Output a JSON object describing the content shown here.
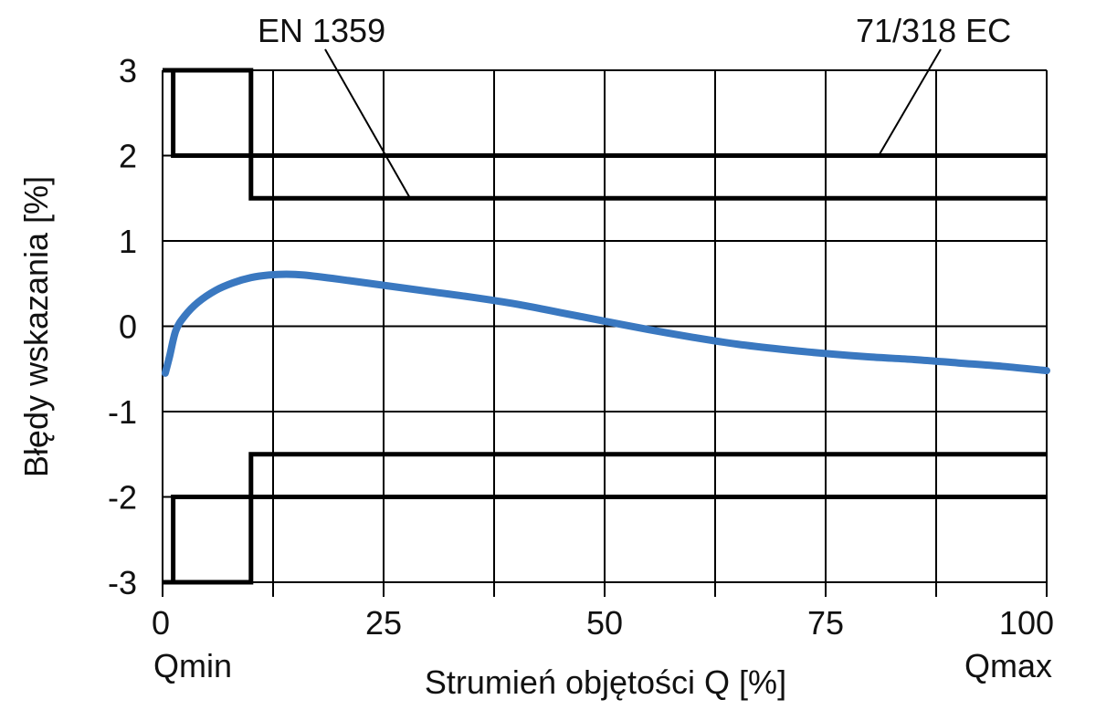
{
  "chart_data": {
    "type": "line",
    "title": "",
    "xlabel": "Strumień objętości Q  [%]",
    "ylabel": "Błędy wskazania  [%]",
    "xlim": [
      0,
      100
    ],
    "ylim": [
      -3,
      3
    ],
    "grid": true,
    "legend": "none",
    "x_ticks": [
      0,
      25,
      50,
      75,
      100
    ],
    "x_tick_labels": [
      "0",
      "25",
      "50",
      "75",
      "100"
    ],
    "x_minor_gridlines": [
      12.5,
      37.5,
      62.5,
      87.5
    ],
    "y_ticks": [
      3,
      2,
      1,
      0,
      -1,
      -2,
      -3
    ],
    "y_tick_labels": [
      "3",
      "2",
      "1",
      "0",
      "-1",
      "-2",
      "-3"
    ],
    "x_end_labels": {
      "min": "Qmin",
      "max": "Qmax"
    },
    "series": [
      {
        "color": "#3a78c0",
        "x": [
          0.3,
          0.8,
          1.5,
          2.5,
          4,
          6,
          8,
          10,
          12,
          14,
          16,
          20,
          25,
          30,
          35,
          40,
          45,
          50,
          55,
          60,
          65,
          70,
          75,
          80,
          85,
          90,
          95,
          100
        ],
        "y": [
          -0.55,
          -0.35,
          -0.05,
          0.12,
          0.28,
          0.42,
          0.51,
          0.57,
          0.6,
          0.61,
          0.6,
          0.55,
          0.48,
          0.41,
          0.34,
          0.26,
          0.16,
          0.06,
          -0.04,
          -0.13,
          -0.21,
          -0.27,
          -0.32,
          -0.36,
          -0.39,
          -0.43,
          -0.47,
          -0.52
        ]
      }
    ],
    "limit_envelopes": [
      {
        "label": "EN 1359",
        "upper": {
          "x": [
            0,
            10,
            10,
            100
          ],
          "y": [
            3,
            3,
            1.5,
            1.5
          ]
        },
        "lower": {
          "x": [
            0,
            10,
            10,
            100
          ],
          "y": [
            -3,
            -3,
            -1.5,
            -1.5
          ]
        }
      },
      {
        "label": "71/318 EC",
        "upper": {
          "x": [
            1.2,
            1.2,
            100
          ],
          "y": [
            3,
            2,
            2
          ]
        },
        "lower": {
          "x": [
            1.2,
            1.2,
            100
          ],
          "y": [
            -3,
            -2,
            -2
          ]
        }
      }
    ],
    "annotations": [
      {
        "text": "EN 1359",
        "points_to": {
          "x": 28,
          "y": 1.5
        }
      },
      {
        "text": "71/318 EC",
        "points_to": {
          "x": 81,
          "y": 2
        }
      }
    ]
  }
}
